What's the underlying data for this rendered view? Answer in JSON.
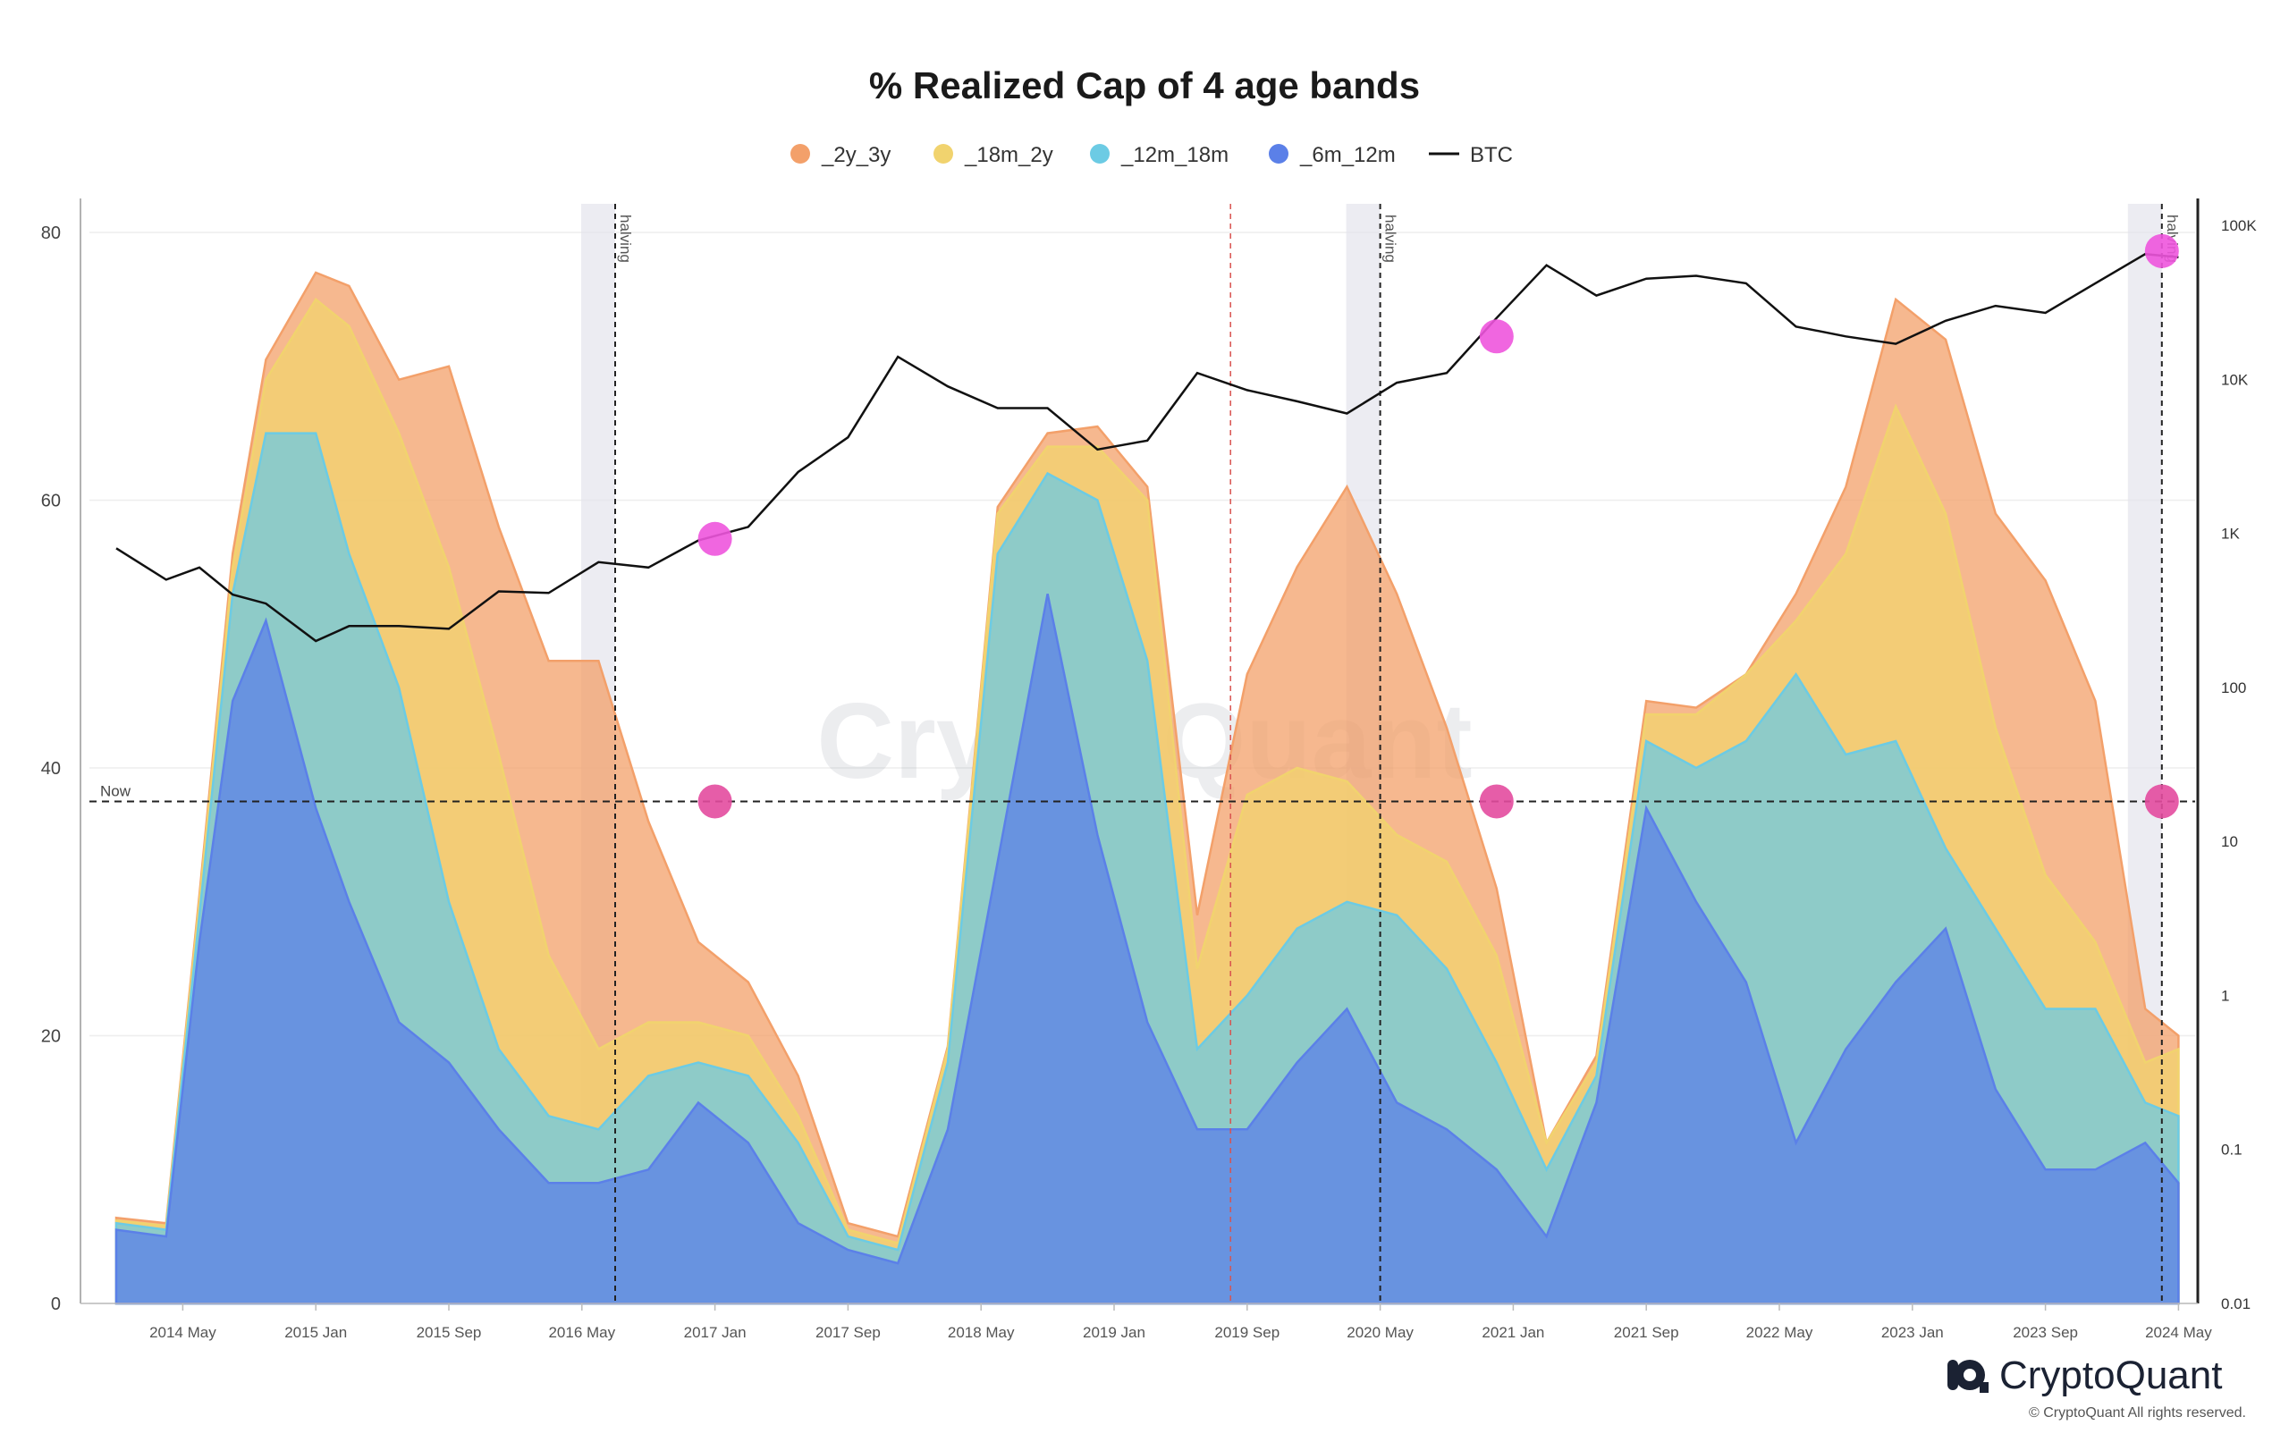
{
  "chart_data": {
    "type": "area",
    "title": "% Realized Cap of 4 age bands",
    "stacked": true,
    "ylim_left": [
      0,
      80
    ],
    "left_ticks": [
      "0",
      "20",
      "40",
      "60",
      "80"
    ],
    "right_axis": {
      "scale": "log",
      "range": [
        0.01,
        100000
      ],
      "ticks": [
        "0.01",
        "0.1",
        "1",
        "10",
        "100",
        "1K",
        "10K",
        "100K"
      ]
    },
    "x_ticks": [
      "2014 May",
      "2015 Jan",
      "2015 Sep",
      "2016 May",
      "2017 Jan",
      "2017 Sep",
      "2018 May",
      "2019 Jan",
      "2019 Sep",
      "2020 May",
      "2021 Jan",
      "2021 Sep",
      "2022 May",
      "2023 Jan",
      "2023 Sep",
      "2024 May"
    ],
    "x_range": [
      "2014-01",
      "2024-06"
    ],
    "grid": true,
    "legend_position": "top",
    "x_dates": [
      "2014-01",
      "2014-04",
      "2014-06",
      "2014-08",
      "2014-10",
      "2015-01",
      "2015-03",
      "2015-06",
      "2015-09",
      "2015-12",
      "2016-03",
      "2016-06",
      "2016-09",
      "2016-12",
      "2017-03",
      "2017-06",
      "2017-09",
      "2017-12",
      "2018-03",
      "2018-06",
      "2018-09",
      "2018-12",
      "2019-03",
      "2019-06",
      "2019-09",
      "2019-12",
      "2020-03",
      "2020-06",
      "2020-09",
      "2020-12",
      "2021-03",
      "2021-06",
      "2021-09",
      "2021-12",
      "2022-03",
      "2022-06",
      "2022-09",
      "2022-12",
      "2023-03",
      "2023-06",
      "2023-09",
      "2023-12",
      "2024-03",
      "2024-05"
    ],
    "series": [
      {
        "name": "_6m_12m",
        "color": "#5b80e8",
        "values": [
          5.5,
          5,
          27,
          45,
          51,
          37,
          30,
          21,
          18,
          13,
          9,
          9,
          10,
          15,
          12,
          6,
          4,
          3,
          13,
          33,
          53,
          35,
          21,
          13,
          13,
          18,
          22,
          15,
          13,
          10,
          5,
          15,
          37,
          30,
          24,
          12,
          19,
          24,
          28,
          16,
          10,
          10,
          12,
          9
        ]
      },
      {
        "name": "_12m_18m",
        "color": "#6ccbe4",
        "values": [
          0.5,
          0.5,
          2,
          8,
          14,
          28,
          26,
          25,
          12,
          6,
          5,
          4,
          7,
          3,
          5,
          6,
          1,
          1,
          5,
          23,
          9,
          25,
          27,
          6,
          10,
          10,
          8,
          14,
          12,
          8,
          5,
          2,
          5,
          10,
          18,
          35,
          22,
          18,
          6,
          12,
          12,
          12,
          3,
          5
        ]
      },
      {
        "name": "_18m_2y",
        "color": "#f1d36e",
        "values": [
          0.2,
          0.3,
          1,
          2,
          4,
          10,
          17,
          19,
          25,
          22,
          12,
          6,
          4,
          3,
          3,
          2,
          0.5,
          0.5,
          1,
          3,
          2,
          4,
          12,
          6,
          15,
          12,
          9,
          6,
          8,
          8,
          2,
          1,
          2,
          4,
          5,
          4,
          15,
          25,
          25,
          15,
          10,
          5,
          3,
          5
        ]
      },
      {
        "name": "_2y_3y",
        "color": "#f3a06a",
        "values": [
          0.2,
          0.2,
          0.5,
          1,
          1.5,
          2,
          3,
          4,
          15,
          17,
          22,
          29,
          15,
          6,
          4,
          3,
          0.5,
          0.5,
          0.2,
          0.5,
          1,
          1.5,
          1,
          4,
          9,
          15,
          22,
          18,
          10,
          5,
          0,
          0.5,
          1,
          0.5,
          0,
          2,
          5,
          8,
          13,
          16,
          22,
          18,
          4,
          1
        ]
      }
    ],
    "btc": {
      "name": "BTC",
      "color": "#111111",
      "values": [
        800,
        500,
        600,
        400,
        350,
        200,
        250,
        250,
        240,
        420,
        410,
        650,
        600,
        900,
        1100,
        2500,
        4200,
        14000,
        9000,
        6500,
        6500,
        3500,
        4000,
        11000,
        8500,
        7200,
        6000,
        9500,
        11000,
        25000,
        55000,
        35000,
        45000,
        47000,
        42000,
        22000,
        19000,
        17000,
        24000,
        30000,
        27000,
        42000,
        65000,
        62000
      ]
    },
    "annotations": {
      "halving_label": "halving",
      "halving_dates": [
        "2016-07",
        "2020-05",
        "2024-04"
      ],
      "red_line_date": "2019-08",
      "now_label": "Now",
      "now_value": 37.5,
      "markers": [
        {
          "date": "2017-01",
          "value": 37.5,
          "color": "#e34b9e"
        },
        {
          "date": "2020-12",
          "value": 37.5,
          "color": "#e34b9e"
        },
        {
          "date": "2024-04",
          "value": 37.5,
          "color": "#e34b9e"
        },
        {
          "date": "2017-01",
          "btc": 920,
          "color": "#ee55dd"
        },
        {
          "date": "2020-12",
          "btc": 19000,
          "color": "#ee55dd"
        },
        {
          "date": "2024-04",
          "btc": 68000,
          "color": "#ee55dd"
        }
      ]
    }
  },
  "watermark": "CryptoQuant",
  "logo": {
    "text": "CryptoQuant"
  },
  "copyright": "© CryptoQuant All rights reserved."
}
